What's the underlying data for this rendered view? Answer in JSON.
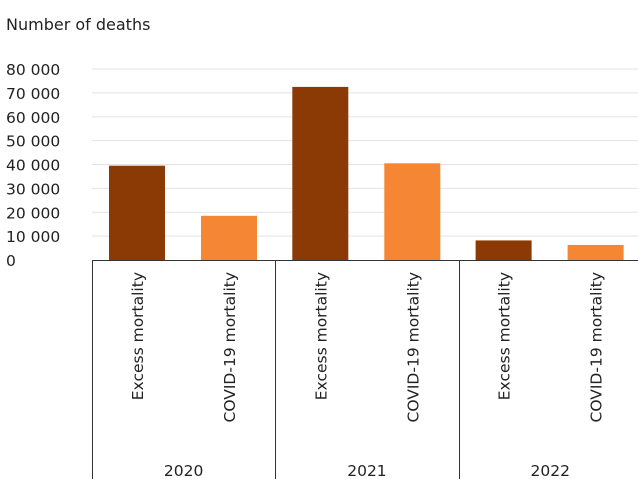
{
  "chart_data": {
    "type": "bar",
    "ylabel": "Number of deaths",
    "ylim": [
      0,
      80000
    ],
    "yticks": [
      0,
      10000,
      20000,
      30000,
      40000,
      50000,
      60000,
      70000,
      80000
    ],
    "ytick_labels": [
      "0",
      "10 000",
      "20 000",
      "30 000",
      "40 000",
      "50 000",
      "60 000",
      "70 000",
      "80 000"
    ],
    "grid": true,
    "groups": [
      {
        "label": "2020",
        "bars": [
          {
            "category": "Excess mortality",
            "value": 39500,
            "color": "#8b3a05"
          },
          {
            "category": "COVID-19 mortality",
            "value": 18500,
            "color": "#f58634"
          }
        ]
      },
      {
        "label": "2021",
        "bars": [
          {
            "category": "Excess mortality",
            "value": 72500,
            "color": "#8b3a05"
          },
          {
            "category": "COVID-19 mortality",
            "value": 40500,
            "color": "#f58634"
          }
        ]
      },
      {
        "label": "2022",
        "bars": [
          {
            "category": "Excess mortality",
            "value": 8200,
            "color": "#8b3a05"
          },
          {
            "category": "COVID-19 mortality",
            "value": 6300,
            "color": "#f58634"
          }
        ]
      }
    ]
  }
}
